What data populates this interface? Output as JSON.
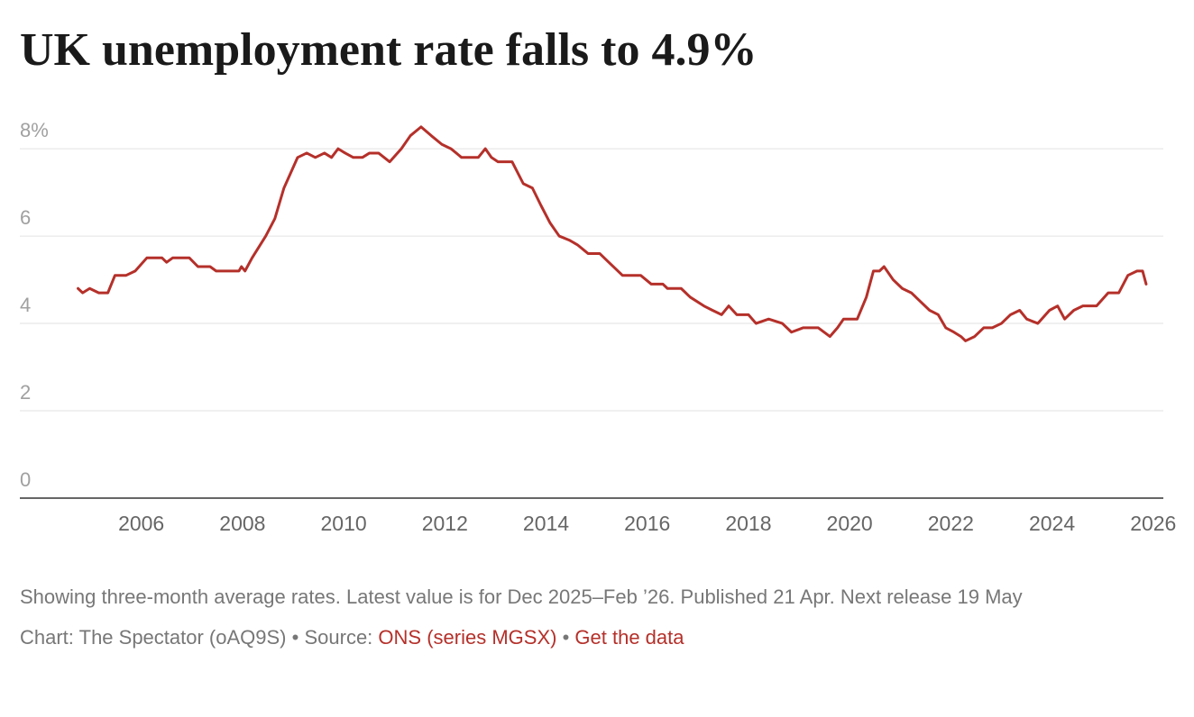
{
  "chart_data": {
    "type": "line",
    "title": "UK unemployment rate falls to 4.9%",
    "x": [
      2004.75,
      2004.84,
      2004.98,
      2005.16,
      2005.34,
      2005.48,
      2005.7,
      2005.88,
      2006.11,
      2006.41,
      2006.5,
      2006.62,
      2006.95,
      2007.12,
      2007.36,
      2007.48,
      2007.93,
      2007.98,
      2008.05,
      2008.19,
      2008.46,
      2008.64,
      2008.82,
      2009.09,
      2009.27,
      2009.44,
      2009.62,
      2009.76,
      2009.89,
      2010.03,
      2010.19,
      2010.37,
      2010.51,
      2010.69,
      2010.91,
      2011.14,
      2011.32,
      2011.53,
      2011.73,
      2011.94,
      2012.12,
      2012.33,
      2012.66,
      2012.8,
      2012.92,
      2013.05,
      2013.33,
      2013.55,
      2013.73,
      2013.9,
      2014.08,
      2014.26,
      2014.47,
      2014.62,
      2014.83,
      2015.06,
      2015.24,
      2015.51,
      2015.87,
      2016.08,
      2016.31,
      2016.4,
      2016.67,
      2016.85,
      2017.12,
      2017.29,
      2017.47,
      2017.61,
      2017.77,
      2018.0,
      2018.15,
      2018.4,
      2018.67,
      2018.85,
      2019.08,
      2019.38,
      2019.61,
      2019.76,
      2019.88,
      2020.15,
      2020.33,
      2020.47,
      2020.59,
      2020.68,
      2020.86,
      2021.04,
      2021.22,
      2021.4,
      2021.58,
      2021.75,
      2021.9,
      2022.06,
      2022.2,
      2022.29,
      2022.47,
      2022.65,
      2022.82,
      2023.0,
      2023.18,
      2023.36,
      2023.5,
      2023.72,
      2023.95,
      2024.11,
      2024.25,
      2024.43,
      2024.61,
      2024.88,
      2025.11,
      2025.32,
      2025.5,
      2025.68,
      2025.79,
      2025.86
    ],
    "values": [
      4.8,
      4.7,
      4.8,
      4.7,
      4.7,
      5.1,
      5.1,
      5.2,
      5.5,
      5.5,
      5.4,
      5.5,
      5.5,
      5.3,
      5.3,
      5.2,
      5.2,
      5.3,
      5.2,
      5.5,
      6.0,
      6.4,
      7.1,
      7.8,
      7.9,
      7.8,
      7.9,
      7.8,
      8.0,
      7.9,
      7.8,
      7.8,
      7.9,
      7.9,
      7.7,
      8.0,
      8.3,
      8.5,
      8.3,
      8.1,
      8.0,
      7.8,
      7.8,
      8.0,
      7.8,
      7.7,
      7.7,
      7.2,
      7.1,
      6.7,
      6.3,
      6.0,
      5.9,
      5.8,
      5.6,
      5.6,
      5.4,
      5.1,
      5.1,
      4.9,
      4.9,
      4.8,
      4.8,
      4.6,
      4.4,
      4.3,
      4.2,
      4.4,
      4.2,
      4.2,
      4.0,
      4.1,
      4.0,
      3.8,
      3.9,
      3.9,
      3.7,
      3.9,
      4.1,
      4.1,
      4.6,
      5.2,
      5.2,
      5.3,
      5.0,
      4.8,
      4.7,
      4.5,
      4.3,
      4.2,
      3.9,
      3.8,
      3.7,
      3.6,
      3.7,
      3.9,
      3.9,
      4.0,
      4.2,
      4.3,
      4.1,
      4.0,
      4.3,
      4.4,
      4.1,
      4.3,
      4.4,
      4.4,
      4.7,
      4.7,
      5.1,
      5.2,
      5.2,
      4.9
    ],
    "color": "#b5302a",
    "xlim": [
      2003.6,
      2026.2
    ],
    "xticks": [
      2006,
      2008,
      2010,
      2012,
      2014,
      2016,
      2018,
      2020,
      2022,
      2024,
      2026
    ],
    "ylim": [
      0,
      8.6
    ],
    "yticks": [
      0,
      2,
      4,
      6,
      {
        "value": 8,
        "label": "8%"
      }
    ],
    "grid": true,
    "note": "Showing three-month average rates. Latest value is for Dec 2025–Feb ’26. Published 21 Apr. Next release 19 May",
    "credit": "Chart: The Spectator (oAQ9S)",
    "separator": "•",
    "source_label": "Source:",
    "source_link": "ONS (series MGSX)",
    "data_link": "Get the data"
  }
}
